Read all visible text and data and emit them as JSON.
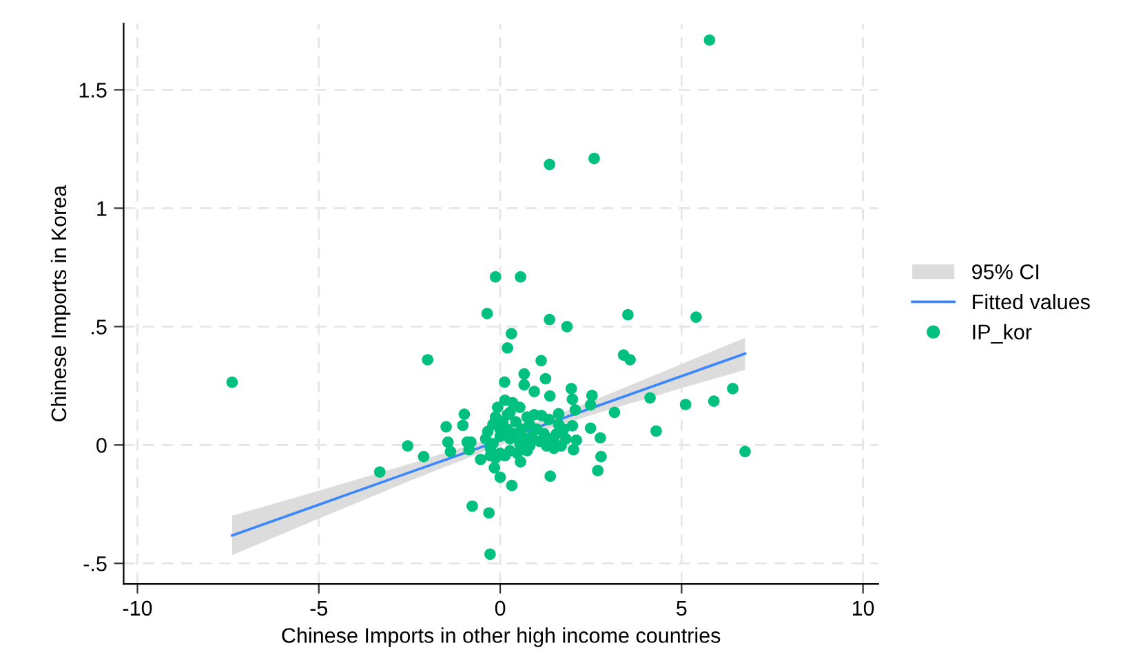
{
  "chart_data": {
    "type": "scatter",
    "xlabel": "Chinese Imports in other high income countries",
    "ylabel": "Chinese Imports in Korea",
    "xlim": [
      -10.38,
      10.42
    ],
    "ylim": [
      -0.587,
      1.78
    ],
    "xticks": [
      -10,
      -5,
      0,
      5,
      10
    ],
    "yticks": [
      {
        "value": -0.5,
        "label": "-.5"
      },
      0,
      {
        "value": 0.5,
        "label": ".5"
      },
      1,
      1.5
    ],
    "annotations": [
      "95% CI"
    ],
    "grid": true,
    "legend": "right",
    "series": [
      {
        "type": "line",
        "name": "Fitted values",
        "color": "#3a86ff",
        "x": [
          -7.39,
          -5,
          -2.5,
          0,
          0.5,
          2.5,
          5,
          6.75
        ],
        "values": [
          -0.382,
          -0.252,
          -0.116,
          0.019,
          0.046,
          0.155,
          0.291,
          0.386
        ],
        "lower": [
          -0.465,
          -0.311,
          -0.152,
          -0.001,
          0.026,
          0.126,
          0.24,
          0.317
        ],
        "upper": [
          -0.299,
          -0.193,
          -0.08,
          0.039,
          0.066,
          0.184,
          0.342,
          0.453
        ]
      },
      {
        "name": "IP_kor",
        "marker": "circle",
        "color": "#00c07f",
        "x": [
          5.77,
          1.36,
          2.59,
          -0.13,
          0.56,
          -0.36,
          1.36,
          1.84,
          3.52,
          5.4,
          0.31,
          0.2,
          -2.0,
          -7.39,
          1.13,
          3.4,
          3.58,
          0.66,
          1.25,
          0.12,
          0.66,
          0.94,
          1.37,
          1.96,
          1.99,
          2.53,
          2.49,
          4.13,
          6.41,
          5.89,
          5.11,
          3.15,
          2.07,
          1.61,
          -0.99,
          -1.49,
          -1.03,
          2.49,
          4.3,
          1.99,
          2.76,
          2.1,
          2.02,
          2.78,
          2.69,
          6.75,
          -2.55,
          -1.44,
          -2.11,
          -1.37,
          -3.32,
          -0.91,
          -0.81,
          -0.86,
          -0.54,
          -0.16,
          0,
          0.32,
          0.56,
          1.38,
          -0.77,
          -0.31,
          -0.28,
          -0.07,
          0.13,
          0.34,
          0.54,
          0.74,
          0.94,
          1.14,
          1.34,
          1.61,
          1.75,
          1.55,
          1.34,
          1.08,
          0.81,
          0.54,
          0.27,
          0,
          -0.27,
          -0.4,
          -0.34,
          -0.2,
          -0.13,
          0.07,
          0.2,
          0.4,
          0.6,
          0.81,
          1.01,
          1.21,
          1.48,
          1.68,
          1.81,
          0.74,
          0.47,
          0.13,
          -0.13,
          -0.27,
          0.87,
          0.27,
          0,
          -0.2,
          0.67,
          1.28,
          1.48,
          0.2,
          0,
          0.43,
          0.27
        ],
        "values": [
          1.71,
          1.185,
          1.21,
          0.71,
          0.71,
          0.555,
          0.53,
          0.5,
          0.55,
          0.54,
          0.47,
          0.41,
          0.36,
          0.265,
          0.356,
          0.38,
          0.36,
          0.3,
          0.28,
          0.266,
          0.254,
          0.226,
          0.207,
          0.238,
          0.193,
          0.209,
          0.169,
          0.199,
          0.238,
          0.185,
          0.171,
          0.138,
          0.148,
          0.132,
          0.13,
          0.077,
          0.083,
          0.071,
          0.059,
          0.081,
          0.03,
          0.02,
          -0.02,
          -0.049,
          -0.108,
          -0.028,
          -0.004,
          0.012,
          -0.049,
          -0.028,
          -0.114,
          0.012,
          0.012,
          -0.02,
          -0.061,
          -0.096,
          -0.136,
          -0.171,
          -0.071,
          -0.132,
          -0.258,
          -0.287,
          -0.461,
          0.159,
          0.189,
          0.179,
          0.159,
          0.118,
          0.128,
          0.124,
          0.108,
          0.087,
          0.067,
          0.047,
          0.026,
          0.016,
          -0.004,
          0.006,
          -0.024,
          -0.035,
          -0.014,
          0.026,
          0.057,
          0.087,
          0.118,
          0.098,
          0.067,
          0.047,
          0.067,
          0.087,
          0.067,
          0.047,
          0.016,
          -0.004,
          0.026,
          -0.024,
          -0.035,
          -0.045,
          -0.055,
          -0.045,
          0.037,
          0.026,
          0.037,
          0.006,
          0.026,
          -0.004,
          -0.014,
          0.128,
          0.067,
          0.098,
          0.138
        ]
      }
    ]
  }
}
